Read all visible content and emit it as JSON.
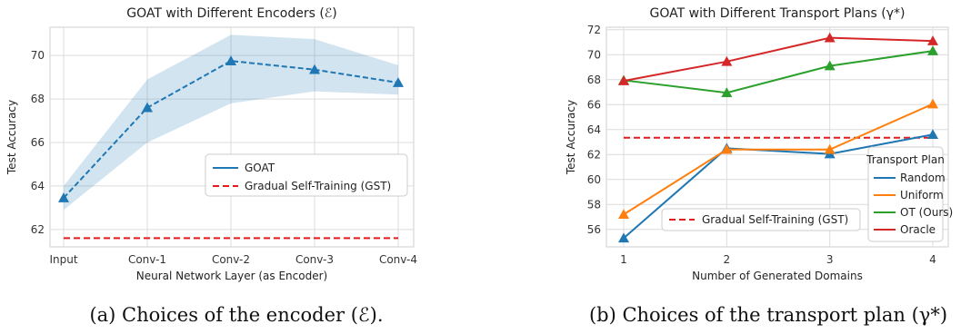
{
  "chart_data": [
    {
      "type": "line",
      "title": "GOAT with Different Encoders (ℰ)",
      "xlabel": "Neural Network Layer (as Encoder)",
      "ylabel": "Test Accuracy",
      "categories": [
        "Input",
        "Conv-1",
        "Conv-2",
        "Conv-3",
        "Conv-4"
      ],
      "ylim": [
        61.2,
        71.3
      ],
      "yticks": [
        "62",
        "64",
        "66",
        "68",
        "70"
      ],
      "grid": true,
      "legend_position": "center-right",
      "series": [
        {
          "name": "GOAT",
          "values": [
            63.45,
            67.6,
            69.75,
            69.35,
            68.75
          ],
          "band_low": [
            62.9,
            66.0,
            67.8,
            68.35,
            68.2
          ],
          "band_high": [
            64.0,
            68.9,
            70.95,
            70.75,
            69.55
          ],
          "color": "#1f77b4",
          "style": "dashed",
          "marker": "triangle"
        },
        {
          "name": "Gradual Self-Training (GST)",
          "constant": 61.6,
          "color": "#e41a1c",
          "style": "dashed"
        }
      ],
      "caption": "(a) Choices of the encoder (ℰ)."
    },
    {
      "type": "line",
      "title": "GOAT with Different Transport Plans (γ*)",
      "xlabel": "Number of Generated Domains",
      "ylabel": "Test Accuracy",
      "x": [
        "1",
        "2",
        "3",
        "4"
      ],
      "ylim": [
        54.6,
        72.2
      ],
      "yticks": [
        "56",
        "58",
        "60",
        "62",
        "64",
        "66",
        "68",
        "70",
        "72"
      ],
      "grid": true,
      "legend_title": "Transport Plan",
      "legend_position": "lower-right",
      "series": [
        {
          "name": "Random",
          "values": [
            55.3,
            62.5,
            62.05,
            63.6
          ],
          "color": "#1f77b4",
          "marker": "triangle"
        },
        {
          "name": "Uniform",
          "values": [
            57.2,
            62.4,
            62.4,
            66.05
          ],
          "color": "#ff7f0e",
          "marker": "triangle"
        },
        {
          "name": "OT (Ours)",
          "values": [
            67.95,
            66.95,
            69.1,
            70.3
          ],
          "color": "#2ca02c",
          "marker": "triangle"
        },
        {
          "name": "Oracle",
          "values": [
            67.9,
            69.45,
            71.35,
            71.1
          ],
          "color": "#d62728",
          "marker": "triangle"
        },
        {
          "name": "Gradual Self-Training (GST)",
          "constant": 63.35,
          "color": "#e41a1c",
          "style": "dashed"
        }
      ],
      "caption": "(b) Choices of the transport plan (γ*)"
    }
  ]
}
